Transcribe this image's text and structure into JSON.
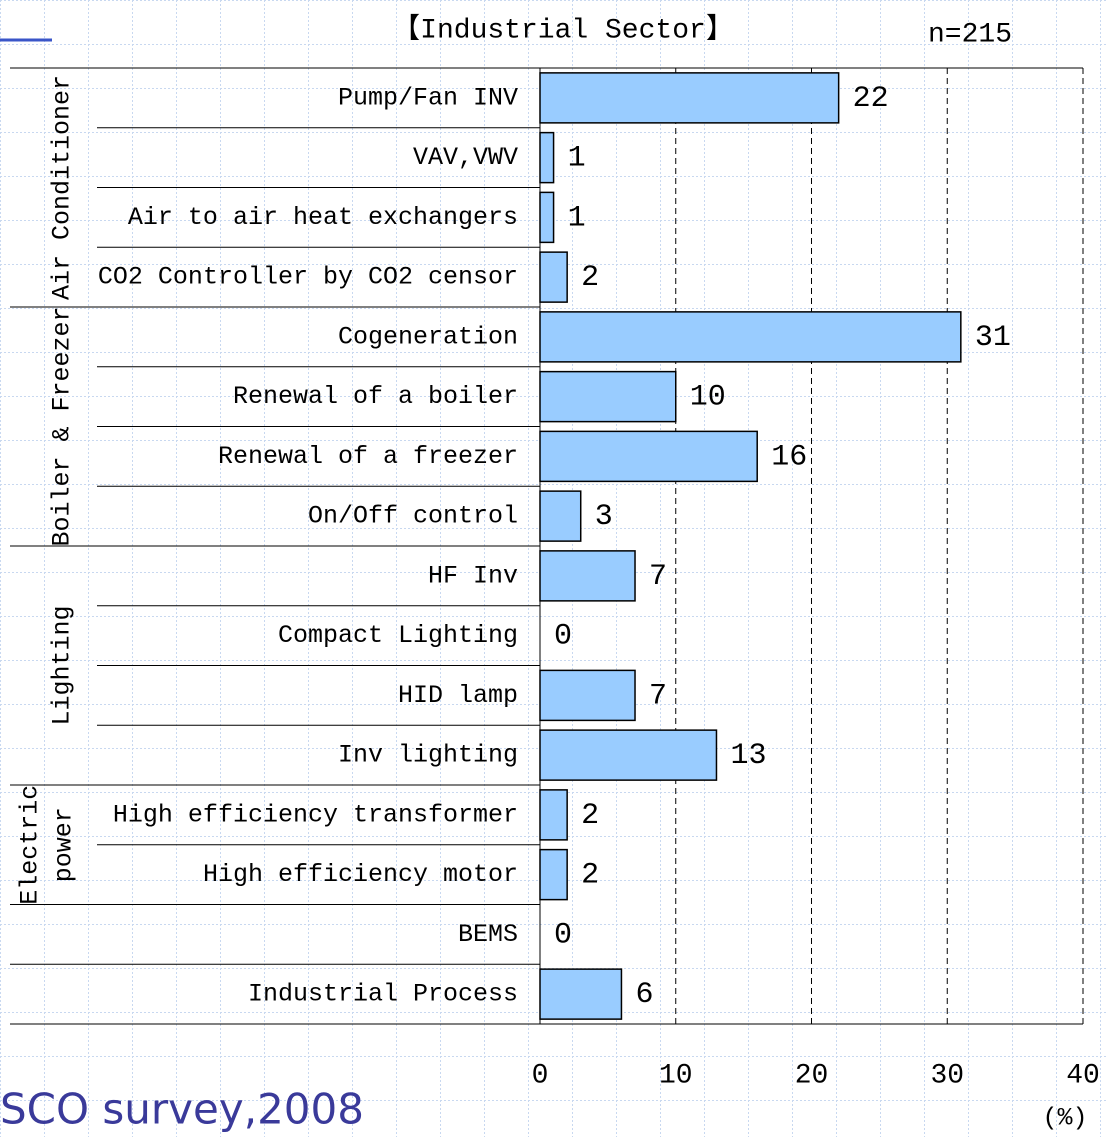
{
  "chart_data": {
    "type": "bar",
    "orientation": "horizontal",
    "title": "【Industrial Sector】",
    "subtitle": "n=215",
    "source": "SCO survey,2008",
    "x_axis_label": "(%)",
    "color": "#99ccff",
    "groups": [
      {
        "label_lines": [
          "Air Conditioner"
        ],
        "categories": [
          "Pump/Fan INV",
          "VAV,VWV",
          "Air to air heat exchangers",
          "CO2 Controller by CO2 censor"
        ],
        "values": [
          22,
          1,
          1,
          2
        ]
      },
      {
        "label_lines": [
          "Boiler & Freezer"
        ],
        "categories": [
          "Cogeneration",
          "Renewal of a boiler",
          "Renewal of a freezer",
          "On/Off control"
        ],
        "values": [
          31,
          10,
          16,
          3
        ]
      },
      {
        "label_lines": [
          "Lighting"
        ],
        "categories": [
          "HF Inv",
          "Compact Lighting",
          "HID lamp",
          "Inv lighting"
        ],
        "values": [
          7,
          0,
          7,
          13
        ]
      },
      {
        "label_lines": [
          "Electric",
          "power"
        ],
        "categories": [
          "High efficiency transformer",
          "High efficiency motor"
        ],
        "values": [
          2,
          2
        ]
      },
      {
        "categories": [
          "BEMS"
        ],
        "values": [
          0
        ]
      },
      {
        "categories": [
          "Industrial Process"
        ],
        "values": [
          6
        ]
      }
    ],
    "xlim": [
      0,
      40
    ],
    "xticks": [
      0,
      10,
      20,
      30,
      40
    ],
    "grid": true
  }
}
